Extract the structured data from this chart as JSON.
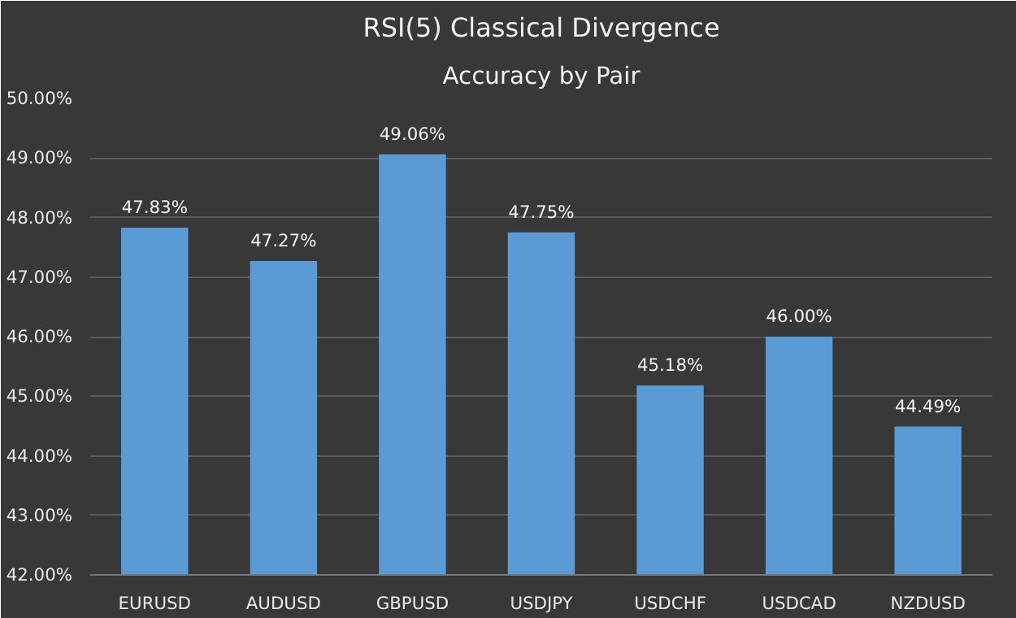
{
  "chart_data": {
    "type": "bar",
    "title": "RSI(5) Classical Divergence",
    "subtitle": "Accuracy by Pair",
    "categories": [
      "EURUSD",
      "AUDUSD",
      "GBPUSD",
      "USDJPY",
      "USDCHF",
      "USDCAD",
      "NZDUSD"
    ],
    "values": [
      47.83,
      47.27,
      49.06,
      47.75,
      45.18,
      46.0,
      44.49
    ],
    "value_labels": [
      "47.83%",
      "47.27%",
      "49.06%",
      "47.75%",
      "45.18%",
      "46.00%",
      "44.49%"
    ],
    "color": "#5b9bd5",
    "ylim": [
      42,
      50
    ],
    "yticks": [
      {
        "value": 42,
        "label": "42.00%"
      },
      {
        "value": 43,
        "label": "43.00%"
      },
      {
        "value": 44,
        "label": "44.00%"
      },
      {
        "value": 45,
        "label": "45.00%"
      },
      {
        "value": 46,
        "label": "46.00%"
      },
      {
        "value": 47,
        "label": "47.00%"
      },
      {
        "value": 48,
        "label": "48.00%"
      },
      {
        "value": 49,
        "label": "49.00%"
      },
      {
        "value": 50,
        "label": "50.00%"
      }
    ],
    "grid": "y"
  }
}
